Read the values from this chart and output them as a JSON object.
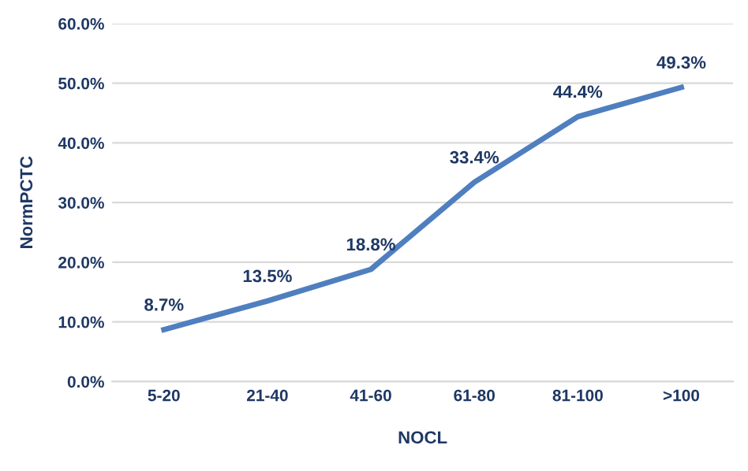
{
  "chart_data": {
    "type": "line",
    "xlabel": "NOCL",
    "ylabel": "NormPCTC",
    "categories": [
      "5-20",
      "21-40",
      "41-60",
      "61-80",
      "81-100",
      ">100"
    ],
    "series": [
      {
        "color": "#4f7fbf",
        "values": [
          8.7,
          13.5,
          18.8,
          33.4,
          44.4,
          49.3
        ],
        "value_labels": [
          "8.7%",
          "13.5%",
          "18.8%",
          "33.4%",
          "44.4%",
          "49.3%"
        ]
      }
    ],
    "ylim": [
      0,
      60
    ],
    "yticks": [
      {
        "value": 0,
        "label": "0.0%"
      },
      {
        "value": 10,
        "label": "10.0%"
      },
      {
        "value": 20,
        "label": "20.0%"
      },
      {
        "value": 30,
        "label": "30.0%"
      },
      {
        "value": 40,
        "label": "40.0%"
      },
      {
        "value": 50,
        "label": "50.0%"
      },
      {
        "value": 60,
        "label": "60.0%"
      }
    ],
    "grid": "y",
    "marker": "none",
    "line_style": "solid"
  }
}
